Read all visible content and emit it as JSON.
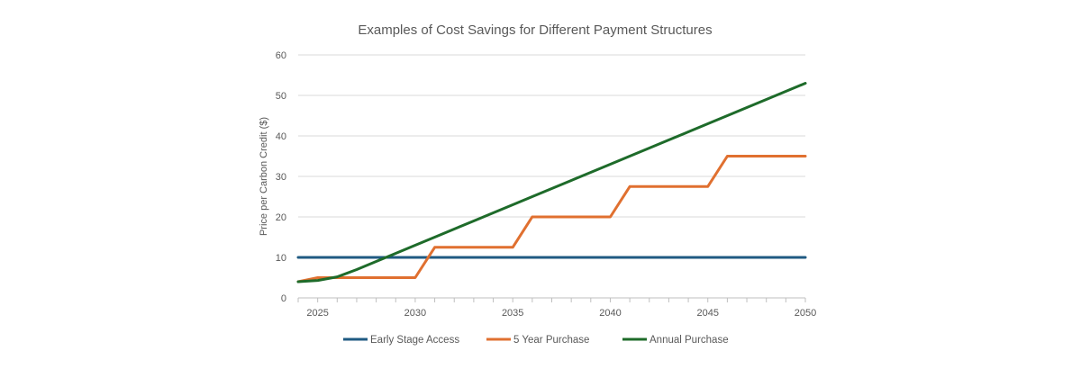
{
  "chart_data": {
    "type": "line",
    "title": "Examples of Cost Savings for Different Payment Structures",
    "xlabel": "",
    "ylabel": "Price per Carbon Credit ($)",
    "xlim": [
      2024,
      2050
    ],
    "ylim": [
      0,
      60
    ],
    "xticks": [
      2025,
      2030,
      2035,
      2040,
      2045,
      2050
    ],
    "yticks": [
      0,
      10,
      20,
      30,
      40,
      50,
      60
    ],
    "grid": "horizontal",
    "legend_position": "bottom",
    "x": [
      2024,
      2025,
      2026,
      2027,
      2028,
      2029,
      2030,
      2031,
      2032,
      2033,
      2034,
      2035,
      2036,
      2037,
      2038,
      2039,
      2040,
      2041,
      2042,
      2043,
      2044,
      2045,
      2046,
      2047,
      2048,
      2049,
      2050
    ],
    "series": [
      {
        "name": "Early Stage Access",
        "color": "#1f5a82",
        "values": [
          10,
          10,
          10,
          10,
          10,
          10,
          10,
          10,
          10,
          10,
          10,
          10,
          10,
          10,
          10,
          10,
          10,
          10,
          10,
          10,
          10,
          10,
          10,
          10,
          10,
          10,
          10
        ]
      },
      {
        "name": "5 Year Purchase",
        "color": "#e07030",
        "values": [
          4,
          5,
          5,
          5,
          5,
          5,
          5,
          12.5,
          12.5,
          12.5,
          12.5,
          12.5,
          20,
          20,
          20,
          20,
          20,
          27.5,
          27.5,
          27.5,
          27.5,
          27.5,
          35,
          35,
          35,
          35,
          35
        ]
      },
      {
        "name": "Annual Purchase",
        "color": "#1e6b2a",
        "values": [
          4,
          4.3,
          5.2,
          7,
          9,
          11,
          13,
          15,
          17,
          19,
          21,
          23,
          25,
          27,
          29,
          31,
          33,
          35,
          37,
          39,
          41,
          43,
          45,
          47,
          49,
          51,
          53
        ]
      }
    ]
  }
}
